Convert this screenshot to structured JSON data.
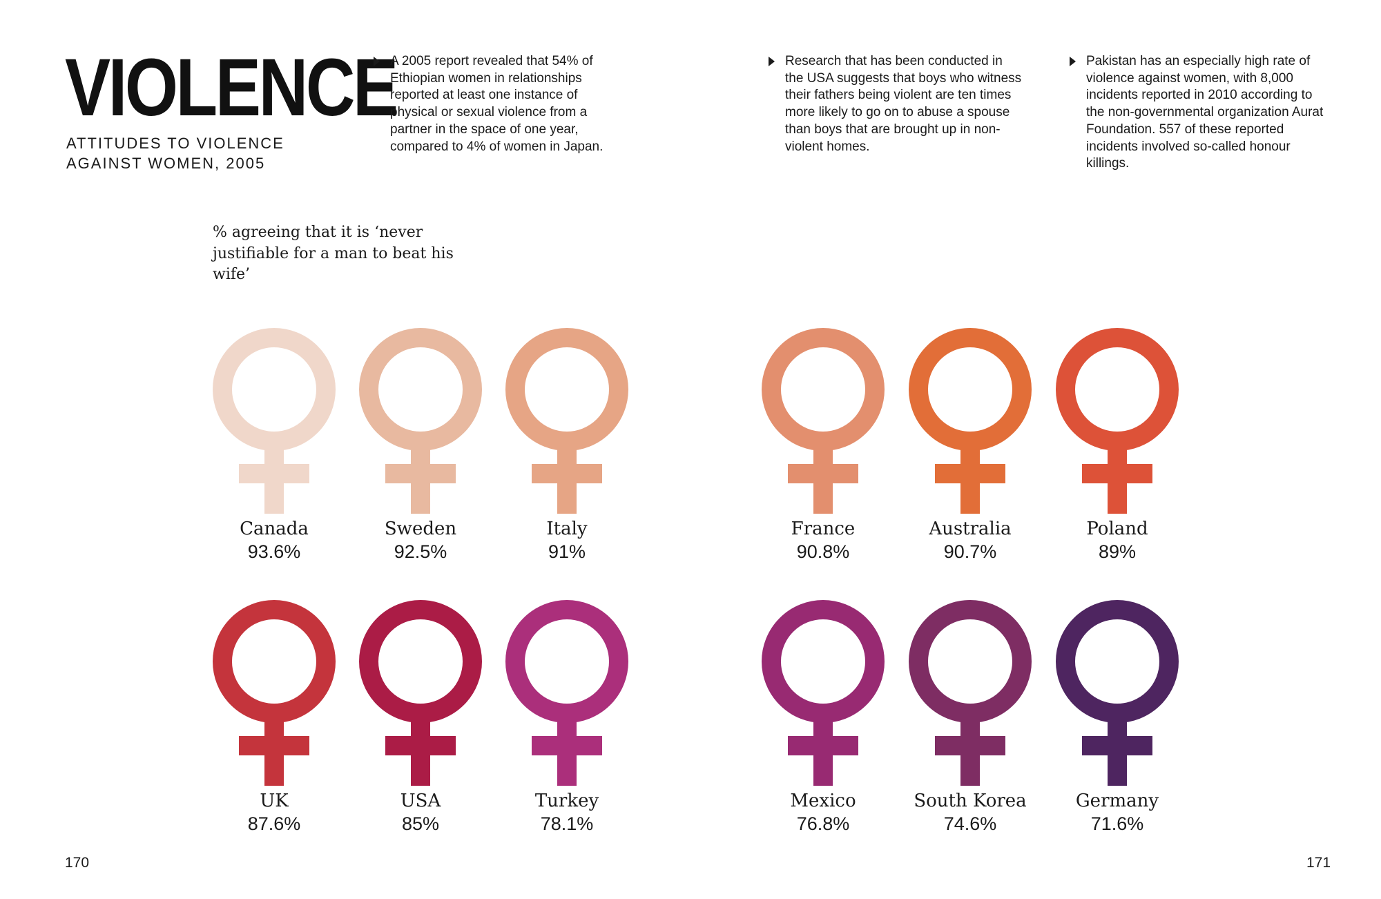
{
  "title": "VIOLENCE",
  "subtitle": "ATTITUDES TO VIOLENCE AGAINST WOMEN, 2005",
  "facts": [
    "A 2005 report revealed that 54% of Ethiopian women in relationships reported at least one instance of physical or sexual violence from a partner in the space of one year, compared to 4% of women in Japan.",
    "Research that has been conducted in the USA suggests that boys who witness their fathers being violent are ten times more likely to go on to abuse a spouse than boys that are brought up in non-violent homes.",
    "Pakistan has an especially high rate of violence against women, with 8,000 incidents reported in 2010 according to the non-governmental organization Aurat Foundation. 557 of these reported incidents involved so-called honour killings."
  ],
  "chart_note": "% agreeing that it is ‘never justifiable for a man to beat his wife’",
  "page_numbers": {
    "left": "170",
    "right": "171"
  },
  "chart_data": {
    "type": "pictogram",
    "value_label_suffix": "%",
    "items": [
      {
        "country": "Canada",
        "value": 93.6,
        "label": "93.6%",
        "color": "#f0d7ca"
      },
      {
        "country": "Sweden",
        "value": 92.5,
        "label": "92.5%",
        "color": "#e8b9a0"
      },
      {
        "country": "Italy",
        "value": 91,
        "label": "91%",
        "color": "#e6a585"
      },
      {
        "country": "France",
        "value": 90.8,
        "label": "90.8%",
        "color": "#e38f6e"
      },
      {
        "country": "Australia",
        "value": 90.7,
        "label": "90.7%",
        "color": "#e26e38"
      },
      {
        "country": "Poland",
        "value": 89,
        "label": "89%",
        "color": "#dd5238"
      },
      {
        "country": "UK",
        "value": 87.6,
        "label": "87.6%",
        "color": "#c4343c"
      },
      {
        "country": "USA",
        "value": 85,
        "label": "85%",
        "color": "#ab1c46"
      },
      {
        "country": "Turkey",
        "value": 78.1,
        "label": "78.1%",
        "color": "#ab2f7b"
      },
      {
        "country": "Mexico",
        "value": 76.8,
        "label": "76.8%",
        "color": "#982a72"
      },
      {
        "country": "South Korea",
        "value": 74.6,
        "label": "74.6%",
        "color": "#7e2d63"
      },
      {
        "country": "Germany",
        "value": 71.6,
        "label": "71.6%",
        "color": "#4e2560"
      }
    ]
  }
}
